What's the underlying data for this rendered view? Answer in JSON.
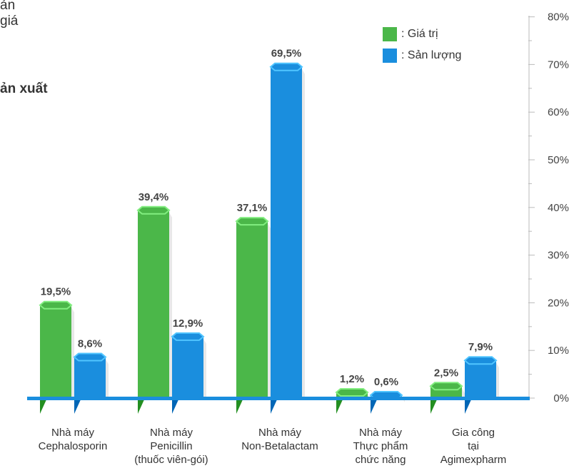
{
  "header_fragments": {
    "line1": "ản",
    "line2": "giá",
    "title": "ản xuất"
  },
  "legend": {
    "items": [
      {
        "label": ": Giá trị",
        "color": "#4bb749"
      },
      {
        "label": ": Sản lượng",
        "color": "#1a8ede"
      }
    ]
  },
  "colors": {
    "value_series": "#4bb749",
    "volume_series": "#1a8ede",
    "baseline": "#1a8ede",
    "axis": "#bbbbbb"
  },
  "chart_data": {
    "type": "bar",
    "categories": [
      [
        "Nhà máy",
        "Cephalosporin"
      ],
      [
        "Nhà máy",
        "Penicillin",
        "(thuốc viên-gói)"
      ],
      [
        "Nhà máy",
        "Non-Betalactam"
      ],
      [
        "Nhà máy",
        "Thực phẩm",
        "chức năng"
      ],
      [
        "Gia công",
        "tại",
        "Agimexpharm"
      ]
    ],
    "series": [
      {
        "name": "Giá trị",
        "values": [
          19.5,
          39.4,
          37.1,
          1.2,
          2.5
        ],
        "labels": [
          "19,5%",
          "39,4%",
          "37,1%",
          "1,2%",
          "2,5%"
        ]
      },
      {
        "name": "Sản lượng",
        "values": [
          8.6,
          12.9,
          69.5,
          0.6,
          7.9
        ],
        "labels": [
          "8,6%",
          "12,9%",
          "69,5%",
          "0,6%",
          "7,9%"
        ]
      }
    ],
    "y_axis": {
      "position": "right",
      "ylim": [
        0,
        80
      ],
      "ticks": [
        0,
        10,
        20,
        30,
        40,
        50,
        60,
        70,
        80
      ],
      "tick_labels": [
        "0%",
        "10%",
        "20%",
        "30%",
        "40%",
        "50%",
        "60%",
        "70%",
        "80%"
      ]
    },
    "legend_position": "top-right",
    "grid": false
  }
}
